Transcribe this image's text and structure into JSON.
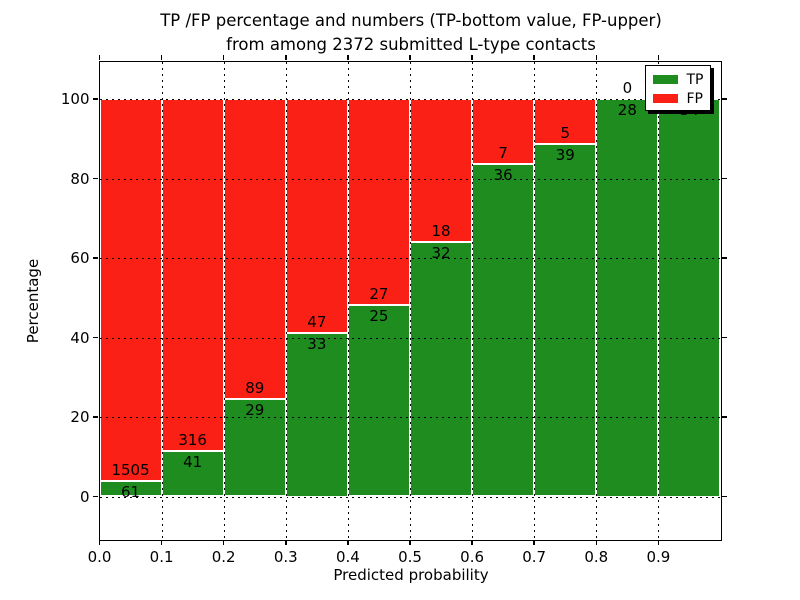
{
  "title": {
    "line1": "TP /FP percentage and numbers (TP-bottom value, FP-upper)",
    "line2": "from among 2372 submitted L-type contacts"
  },
  "axes": {
    "xlabel": "Predicted probability",
    "ylabel": "Percentage"
  },
  "legend": {
    "entries": [
      {
        "label": "TP",
        "color": "#1e8c1e"
      },
      {
        "label": "FP",
        "color": "#fb2016"
      }
    ]
  },
  "chart_data": {
    "type": "bar",
    "stacked": true,
    "normalized_to_percent": true,
    "title": "TP /FP percentage and numbers (TP-bottom value, FP-upper) from among 2372 submitted L-type contacts",
    "total_contacts": 2372,
    "xlabel": "Predicted probability",
    "ylabel": "Percentage",
    "categories": [
      "0.0-0.1",
      "0.1-0.2",
      "0.2-0.3",
      "0.3-0.4",
      "0.4-0.5",
      "0.5-0.6",
      "0.6-0.7",
      "0.7-0.8",
      "0.8-0.9",
      "0.9-1.0"
    ],
    "series": [
      {
        "name": "TP",
        "color": "#1e8c1e",
        "counts": [
          61,
          41,
          29,
          33,
          25,
          32,
          36,
          39,
          28,
          34
        ],
        "percent": [
          3.9,
          11.5,
          24.6,
          41.3,
          48.1,
          64.0,
          83.7,
          88.6,
          100.0,
          100.0
        ]
      },
      {
        "name": "FP",
        "color": "#fb2016",
        "counts": [
          1505,
          316,
          89,
          47,
          27,
          18,
          7,
          5,
          0,
          0
        ],
        "percent": [
          96.1,
          88.5,
          75.4,
          58.8,
          51.9,
          36.0,
          16.3,
          11.4,
          0.0,
          0.0
        ]
      }
    ],
    "xticks": [
      "0.0",
      "0.1",
      "0.2",
      "0.3",
      "0.4",
      "0.5",
      "0.6",
      "0.7",
      "0.8",
      "0.9"
    ],
    "yticks": [
      0,
      20,
      40,
      60,
      80,
      100
    ],
    "xlim": [
      0.0,
      1.0
    ],
    "ylim": [
      -11,
      110
    ],
    "grid": true,
    "grid_style": "dotted",
    "legend_position": "upper right"
  }
}
